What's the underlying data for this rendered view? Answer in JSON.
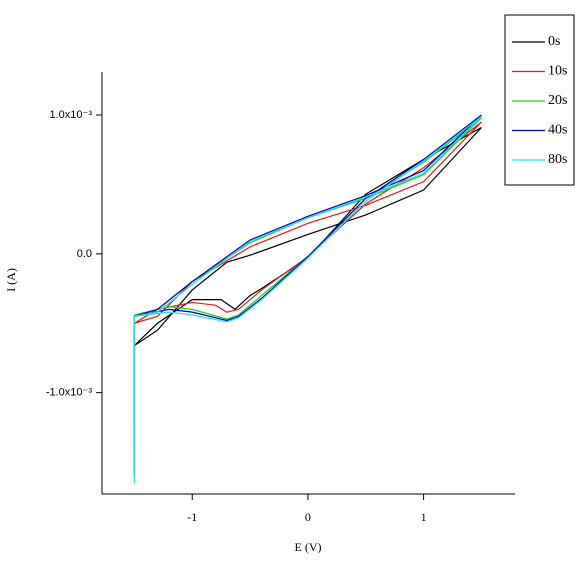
{
  "chart_data": {
    "type": "line",
    "x_label": "E (V)",
    "y_label": "I (A)",
    "xlim": [
      -1.78,
      1.79
    ],
    "xticks": [
      -1,
      0,
      1
    ],
    "ylim": [
      -0.00173,
      0.00131
    ],
    "yticks": [
      {
        "value": -0.001,
        "label": "-1.0x10⁻³"
      },
      {
        "value": 0,
        "label": "0.0"
      },
      {
        "value": 0.001,
        "label": "1.0x10⁻³"
      }
    ],
    "legend": "top-right",
    "series": [
      {
        "name": "0s",
        "color": "#000000",
        "x": [
          -1.5,
          -1.5,
          -1.3,
          -1.0,
          -0.75,
          -0.63,
          -0.5,
          -0.4,
          0,
          0.5,
          1.0,
          1.5,
          1.0,
          0.5,
          0,
          -0.5,
          -0.7,
          -1.0,
          -1.3,
          -1.5
        ],
        "values": [
          -0.0012,
          -0.00066,
          -0.0005,
          -0.00033,
          -0.00033,
          -0.0004,
          -0.0003,
          -0.00025,
          -3e-05,
          0.00043,
          0.00068,
          0.00091,
          0.00046,
          0.00028,
          0.00014,
          -1e-05,
          -6e-05,
          -0.00026,
          -0.00055,
          -0.00066
        ]
      },
      {
        "name": "10s",
        "color": "#e41a1c",
        "x": [
          -1.5,
          -1.5,
          -1.3,
          -1.0,
          -0.8,
          -0.7,
          -0.6,
          -0.4,
          0,
          0.5,
          1.0,
          1.5,
          1.0,
          0.5,
          0,
          -0.5,
          -1.0,
          -1.3,
          -1.5
        ],
        "values": [
          -0.0014,
          -0.0005,
          -0.0004,
          -0.00035,
          -0.00037,
          -0.00042,
          -0.0004,
          -0.00026,
          -2e-05,
          0.00036,
          0.00062,
          0.00095,
          0.00052,
          0.00035,
          0.00022,
          5e-05,
          -0.0002,
          -0.00045,
          -0.0005
        ]
      },
      {
        "name": "20s",
        "color": "#1fd11f",
        "x": [
          -1.5,
          -1.5,
          -1.2,
          -1.0,
          -0.7,
          -0.6,
          -0.4,
          0,
          0.5,
          1.0,
          1.5,
          1.0,
          0.5,
          0,
          -0.5,
          -1.0,
          -1.3,
          -1.5
        ],
        "values": [
          -0.00155,
          -0.00044,
          -0.00038,
          -0.0004,
          -0.00047,
          -0.00044,
          -0.0003,
          -2e-05,
          0.0004,
          0.00066,
          0.00098,
          0.00057,
          0.0004,
          0.00026,
          8e-05,
          -0.0002,
          -0.0004,
          -0.00044
        ]
      },
      {
        "name": "40s",
        "color": "#0000cc",
        "x": [
          -1.5,
          -1.5,
          -1.2,
          -1.0,
          -0.7,
          -0.6,
          -0.4,
          0,
          0.5,
          1.0,
          1.5,
          1.0,
          0.5,
          0,
          -0.5,
          -1.0,
          -1.3,
          -1.5
        ],
        "values": [
          -0.0016,
          -0.00045,
          -0.0004,
          -0.00042,
          -0.00048,
          -0.00045,
          -0.00032,
          -2e-05,
          0.0004,
          0.00068,
          0.001,
          0.0006,
          0.00042,
          0.00027,
          0.0001,
          -0.0002,
          -0.0004,
          -0.00045
        ]
      },
      {
        "name": "80s",
        "color": "#22e0f0",
        "x": [
          -1.5,
          -1.5,
          -1.2,
          -1.0,
          -0.7,
          -0.6,
          -0.4,
          0,
          0.5,
          1.0,
          1.5,
          1.0,
          0.5,
          0,
          -0.5,
          -1.0,
          -1.3,
          -1.5
        ],
        "values": [
          -0.00165,
          -0.00045,
          -0.00042,
          -0.00044,
          -0.00049,
          -0.00046,
          -0.00033,
          -3e-05,
          0.00038,
          0.00067,
          0.00099,
          0.00058,
          0.00041,
          0.00026,
          9e-05,
          -0.00022,
          -0.00042,
          -0.00045
        ]
      }
    ]
  }
}
